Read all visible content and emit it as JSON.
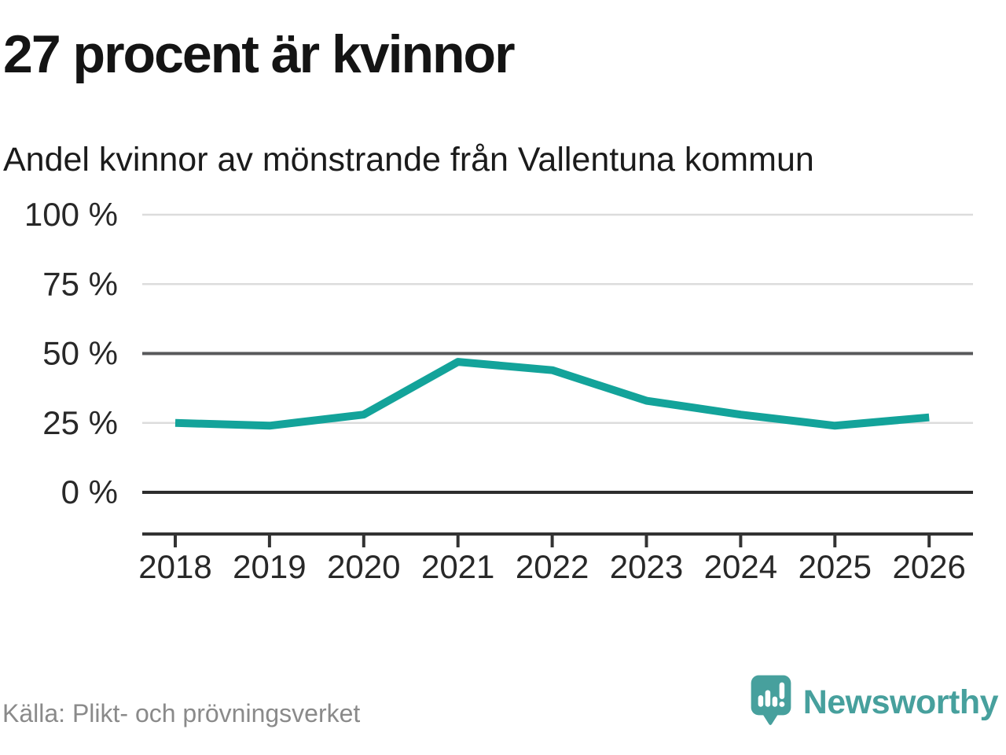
{
  "header": {
    "title": "27 procent är kvinnor",
    "subtitle": "Andel kvinnor av mönstrande från Vallentuna kommun"
  },
  "footer": {
    "source": "Källa: Plikt- och prövningsverket",
    "brand": "Newsworthy"
  },
  "colors": {
    "line": "#13a39a",
    "grid_light": "#dcdcdc",
    "grid_mid": "#58595b",
    "grid_zero": "#2d2d2d",
    "axis": "#333333",
    "tick_label": "#282828",
    "brand_teal": "#47a09d"
  },
  "chart_data": {
    "type": "line",
    "title": "27 procent är kvinnor",
    "subtitle": "Andel kvinnor av mönstrande från Vallentuna kommun",
    "x": [
      2018,
      2019,
      2020,
      2021,
      2022,
      2023,
      2024,
      2025,
      2026
    ],
    "series": [
      {
        "name": "Andel kvinnor av mönstrande",
        "values": [
          25,
          24,
          28,
          47,
          44,
          33,
          28,
          24,
          27
        ]
      }
    ],
    "unit": "%",
    "ylim": [
      0,
      100
    ],
    "yticks": [
      0,
      25,
      50,
      75,
      100
    ],
    "ytick_labels": [
      "0 %",
      "25 %",
      "50 %",
      "75 %",
      "100 %"
    ],
    "emphasized_gridlines": [
      0,
      50
    ],
    "grid": true,
    "legend": "none",
    "source": "Källa: Plikt- och prövningsverket"
  }
}
